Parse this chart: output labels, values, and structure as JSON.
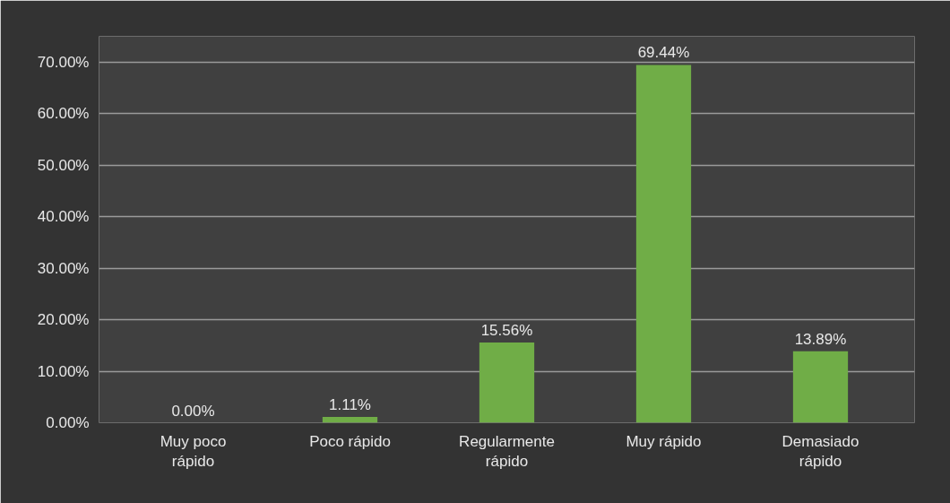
{
  "chart_data": {
    "type": "bar",
    "categories": [
      "Muy poco rápido",
      "Poco rápido",
      "Regularmente rápido",
      "Muy rápido",
      "Demasiado rápido"
    ],
    "values": [
      0,
      1.11,
      15.56,
      69.44,
      13.89
    ],
    "color": "#70ad47",
    "value_labels": [
      "0.00%",
      "1.11%",
      "15.56%",
      "69.44%",
      "13.89%"
    ],
    "ylim": [
      0,
      75
    ],
    "yticks": [
      {
        "value": 0,
        "label": "0.00%"
      },
      {
        "value": 10,
        "label": "10.00%"
      },
      {
        "value": 20,
        "label": "20.00%"
      },
      {
        "value": 30,
        "label": "30.00%"
      },
      {
        "value": 40,
        "label": "40.00%"
      },
      {
        "value": 50,
        "label": "50.00%"
      },
      {
        "value": 60,
        "label": "60.00%"
      },
      {
        "value": 70,
        "label": "70.00%"
      }
    ],
    "grid": "y"
  }
}
